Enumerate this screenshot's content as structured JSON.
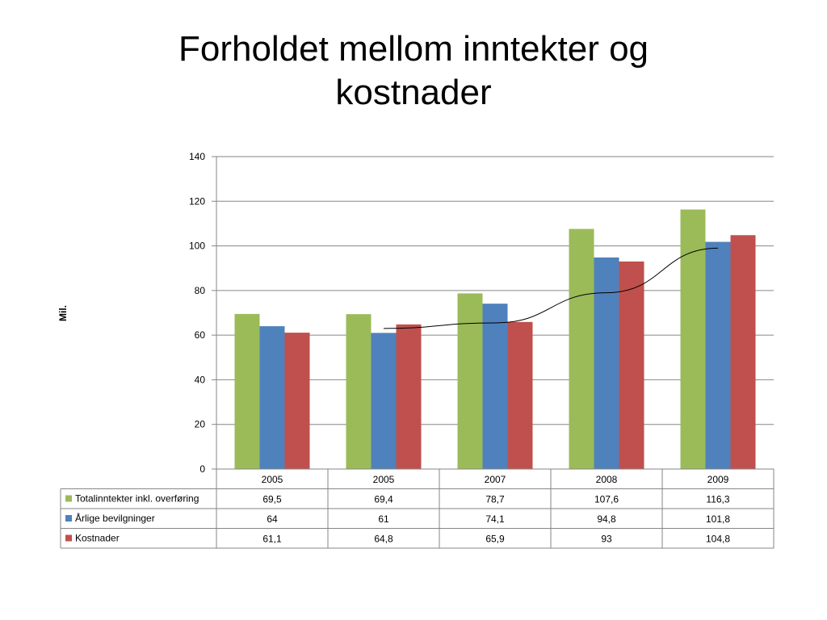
{
  "slide": {
    "title_line1": "Forholdet mellom inntekter og",
    "title_line2": "kostnader"
  },
  "chart_data": {
    "type": "bar",
    "categories": [
      "2005",
      "2005",
      "2007",
      "2008",
      "2009"
    ],
    "series": [
      {
        "name": "Totalinntekter inkl. overføring",
        "color": "#9BBB59",
        "values": [
          69.5,
          69.4,
          78.7,
          107.6,
          116.3
        ],
        "labels": [
          "69,5",
          "69,4",
          "78,7",
          "107,6",
          "116,3"
        ]
      },
      {
        "name": "Årlige bevilgninger",
        "color": "#4F81BD",
        "values": [
          64,
          61,
          74.1,
          94.8,
          101.8
        ],
        "labels": [
          "64",
          "61",
          "74,1",
          "94,8",
          "101,8"
        ]
      },
      {
        "name": "Kostnader",
        "color": "#C0504D",
        "values": [
          61.1,
          64.8,
          65.9,
          93,
          104.8
        ],
        "labels": [
          "61,1",
          "64,8",
          "65,9",
          "93",
          "104,8"
        ]
      }
    ],
    "trendline": {
      "from_category_index": 1,
      "to_category_index": 4,
      "values": [
        63,
        65.5,
        79,
        99
      ],
      "color": "#000000"
    },
    "ylabel": "Mil.",
    "ylim": [
      0,
      140
    ],
    "yticks": [
      0,
      20,
      40,
      60,
      80,
      100,
      120,
      140
    ],
    "grid": true,
    "legend": "data-table"
  }
}
